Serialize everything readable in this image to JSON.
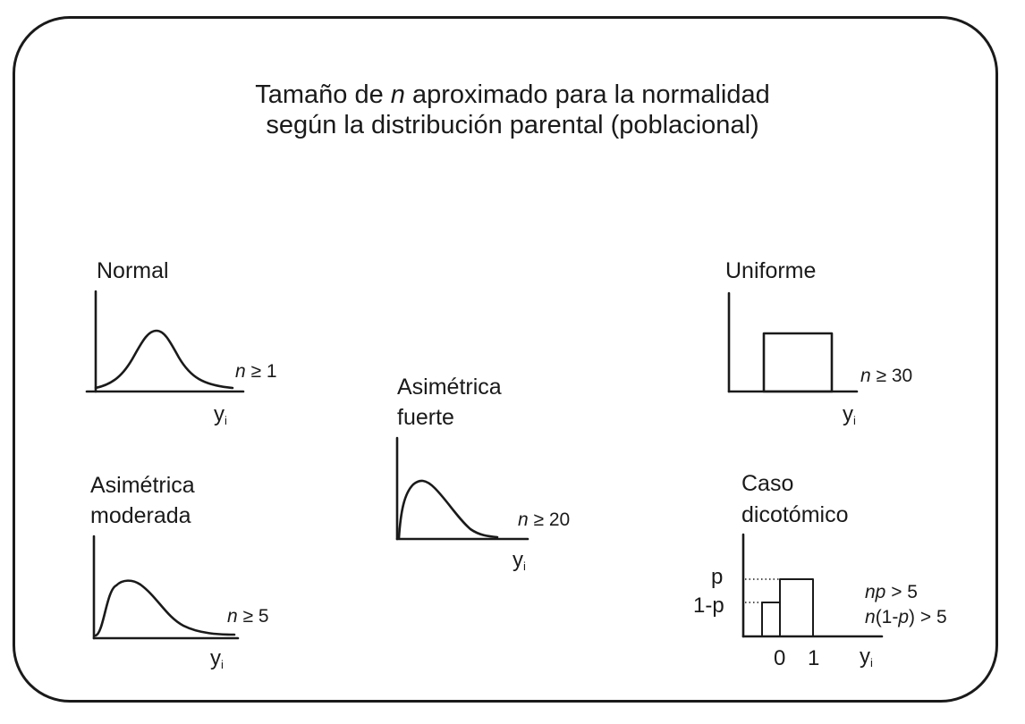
{
  "title": {
    "line1_pre": "Tamaño de ",
    "line1_var": "n",
    "line1_post": " aproximado para la normalidad",
    "line2": "según la distribución parental (poblacional)"
  },
  "panels": {
    "normal": {
      "label": "Normal",
      "cond_var": "n",
      "cond_rest": " ≥ 1",
      "axis_var": "y",
      "axis_sub": "i",
      "icon": "bell-curve"
    },
    "moderate": {
      "label_line1": "Asimétrica",
      "label_line2": "moderada",
      "cond_var": "n",
      "cond_rest": " ≥ 5",
      "axis_var": "y",
      "axis_sub": "i",
      "icon": "moderately-skewed-curve"
    },
    "strong": {
      "label_line1": "Asimétrica",
      "label_line2": "fuerte",
      "cond_var": "n",
      "cond_rest": " ≥ 20",
      "axis_var": "y",
      "axis_sub": "i",
      "icon": "strongly-skewed-curve"
    },
    "uniform": {
      "label": "Uniforme",
      "cond_var": "n",
      "cond_rest": " ≥ 30",
      "axis_var": "y",
      "axis_sub": "i",
      "icon": "uniform-rectangle"
    },
    "dichotomous": {
      "label_line1": "Caso",
      "label_line2": "dicotómico",
      "y_label_p": "p",
      "y_label_1mp": "1-p",
      "x_label_0": "0",
      "x_label_1": "1",
      "cond1_var": "np",
      "cond1_rest": " > 5",
      "cond2_n": "n",
      "cond2_open": "(1-",
      "cond2_p": "p",
      "cond2_close": ") > 5",
      "axis_var": "y",
      "axis_sub": "i",
      "icon": "two-bars"
    }
  },
  "colors": {
    "stroke": "#1a1a1a",
    "background": "#ffffff"
  }
}
